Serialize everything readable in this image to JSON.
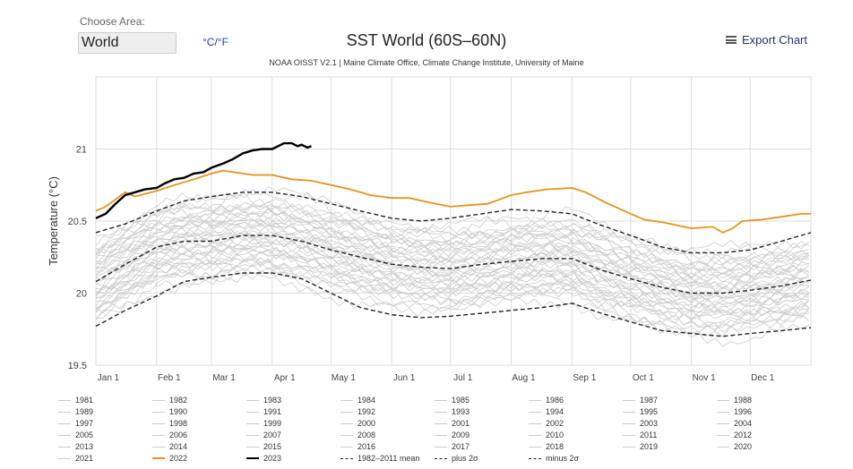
{
  "controls": {
    "area_label": "Choose Area:",
    "area_value": "World",
    "unit_toggle": "°C/°F",
    "export_label": "Export Chart"
  },
  "colors": {
    "background_year": "#cccccc",
    "year_2022": "#e8921e",
    "year_2023": "#000000",
    "mean": "#222222",
    "grid": "#dddddd"
  },
  "chart_data": {
    "type": "line",
    "title": "SST World (60S–60N)",
    "subtitle": "NOAA OISST V2.1 | Maine Climate Office, Climate Change Institute, University of Maine",
    "xlabel": "",
    "ylabel": "Temperature (°C)",
    "ylim": [
      19.5,
      21.5
    ],
    "xlim": [
      0,
      365
    ],
    "yticks": [
      19.5,
      20,
      20.5,
      21
    ],
    "ytick_labels": [
      "19.5",
      "20",
      "20.5",
      "21"
    ],
    "xticks": [
      {
        "label": "Jan 1",
        "day": 0
      },
      {
        "label": "Feb 1",
        "day": 31
      },
      {
        "label": "Mar 1",
        "day": 59
      },
      {
        "label": "Apr 1",
        "day": 90
      },
      {
        "label": "May 1",
        "day": 120
      },
      {
        "label": "Jun 1",
        "day": 151
      },
      {
        "label": "Jul 1",
        "day": 181
      },
      {
        "label": "Aug 1",
        "day": 212
      },
      {
        "label": "Sep 1",
        "day": 243
      },
      {
        "label": "Oct 1",
        "day": 273
      },
      {
        "label": "Nov 1",
        "day": 304
      },
      {
        "label": "Dec 1",
        "day": 334
      }
    ],
    "background_years": [
      "1981",
      "1982",
      "1983",
      "1984",
      "1985",
      "1986",
      "1987",
      "1988",
      "1989",
      "1990",
      "1991",
      "1992",
      "1993",
      "1994",
      "1995",
      "1996",
      "1997",
      "1998",
      "1999",
      "2000",
      "2001",
      "2002",
      "2003",
      "2004",
      "2005",
      "2006",
      "2007",
      "2008",
      "2009",
      "2010",
      "2011",
      "2012",
      "2013",
      "2014",
      "2015",
      "2016",
      "2017",
      "2018",
      "2019",
      "2020",
      "2021"
    ],
    "series": [
      {
        "name": "1982–2011 mean",
        "style": "dashed",
        "x": [
          0,
          15,
          31,
          45,
          59,
          75,
          90,
          105,
          120,
          135,
          151,
          166,
          181,
          197,
          212,
          228,
          243,
          258,
          273,
          289,
          304,
          320,
          334,
          350,
          365
        ],
        "values": [
          20.08,
          20.2,
          20.32,
          20.36,
          20.36,
          20.4,
          20.4,
          20.36,
          20.3,
          20.25,
          20.2,
          20.18,
          20.17,
          20.2,
          20.22,
          20.24,
          20.24,
          20.16,
          20.1,
          20.04,
          20.0,
          20.0,
          20.02,
          20.05,
          20.09
        ]
      },
      {
        "name": "plus 2σ",
        "style": "dashed",
        "x": [
          0,
          15,
          31,
          45,
          59,
          75,
          90,
          105,
          120,
          135,
          151,
          166,
          181,
          197,
          212,
          228,
          243,
          258,
          273,
          289,
          304,
          320,
          334,
          350,
          365
        ],
        "values": [
          20.42,
          20.48,
          20.57,
          20.64,
          20.67,
          20.7,
          20.7,
          20.67,
          20.62,
          20.57,
          20.52,
          20.5,
          20.52,
          20.55,
          20.58,
          20.57,
          20.55,
          20.47,
          20.4,
          20.32,
          20.28,
          20.28,
          20.3,
          20.36,
          20.42
        ]
      },
      {
        "name": "minus 2σ",
        "style": "dashed",
        "x": [
          0,
          15,
          31,
          45,
          59,
          75,
          90,
          105,
          120,
          135,
          151,
          166,
          181,
          197,
          212,
          228,
          243,
          258,
          273,
          289,
          304,
          320,
          334,
          350,
          365
        ],
        "values": [
          19.77,
          19.88,
          19.98,
          20.08,
          20.11,
          20.14,
          20.14,
          20.1,
          20.0,
          19.9,
          19.85,
          19.83,
          19.84,
          19.86,
          19.88,
          19.9,
          19.93,
          19.86,
          19.8,
          19.74,
          19.72,
          19.7,
          19.72,
          19.74,
          19.76
        ]
      },
      {
        "name": "2022",
        "style": "solid",
        "x": [
          0,
          5,
          10,
          15,
          20,
          31,
          40,
          50,
          59,
          65,
          75,
          80,
          90,
          100,
          110,
          120,
          130,
          140,
          151,
          160,
          170,
          181,
          190,
          200,
          212,
          220,
          230,
          243,
          250,
          260,
          273,
          280,
          290,
          304,
          315,
          320,
          325,
          330,
          340,
          350,
          360,
          365
        ],
        "values": [
          20.57,
          20.6,
          20.65,
          20.7,
          20.67,
          20.71,
          20.75,
          20.79,
          20.83,
          20.85,
          20.83,
          20.82,
          20.82,
          20.79,
          20.78,
          20.75,
          20.72,
          20.68,
          20.66,
          20.66,
          20.63,
          20.6,
          20.61,
          20.62,
          20.68,
          20.7,
          20.72,
          20.73,
          20.7,
          20.63,
          20.55,
          20.51,
          20.49,
          20.45,
          20.46,
          20.42,
          20.45,
          20.5,
          20.51,
          20.53,
          20.55,
          20.55
        ]
      },
      {
        "name": "2023",
        "style": "solid",
        "x": [
          0,
          5,
          10,
          15,
          20,
          25,
          31,
          35,
          40,
          45,
          50,
          55,
          59,
          65,
          70,
          75,
          80,
          85,
          90,
          93,
          96,
          100,
          103,
          105,
          108,
          110
        ],
        "values": [
          20.52,
          20.55,
          20.62,
          20.68,
          20.7,
          20.72,
          20.73,
          20.76,
          20.79,
          20.8,
          20.83,
          20.84,
          20.87,
          20.9,
          20.93,
          20.97,
          20.99,
          21.0,
          21.0,
          21.02,
          21.04,
          21.04,
          21.02,
          21.03,
          21.01,
          21.02
        ]
      }
    ]
  },
  "legend_rows": [
    [
      "1981",
      "1982",
      "1983",
      "1984",
      "1985",
      "1986",
      "1987",
      "1988"
    ],
    [
      "1989",
      "1990",
      "1991",
      "1992",
      "1993",
      "1994",
      "1995",
      "1996"
    ],
    [
      "1997",
      "1998",
      "1999",
      "2000",
      "2001",
      "2002",
      "2003",
      "2004"
    ],
    [
      "2005",
      "2006",
      "2007",
      "2008",
      "2009",
      "2010",
      "2011",
      "2012"
    ],
    [
      "2013",
      "2014",
      "2015",
      "2016",
      "2017",
      "2018",
      "2019",
      "2020"
    ],
    [
      "2021",
      "2022",
      "2023",
      "1982–2011 mean",
      "plus 2σ",
      "minus 2σ"
    ]
  ]
}
